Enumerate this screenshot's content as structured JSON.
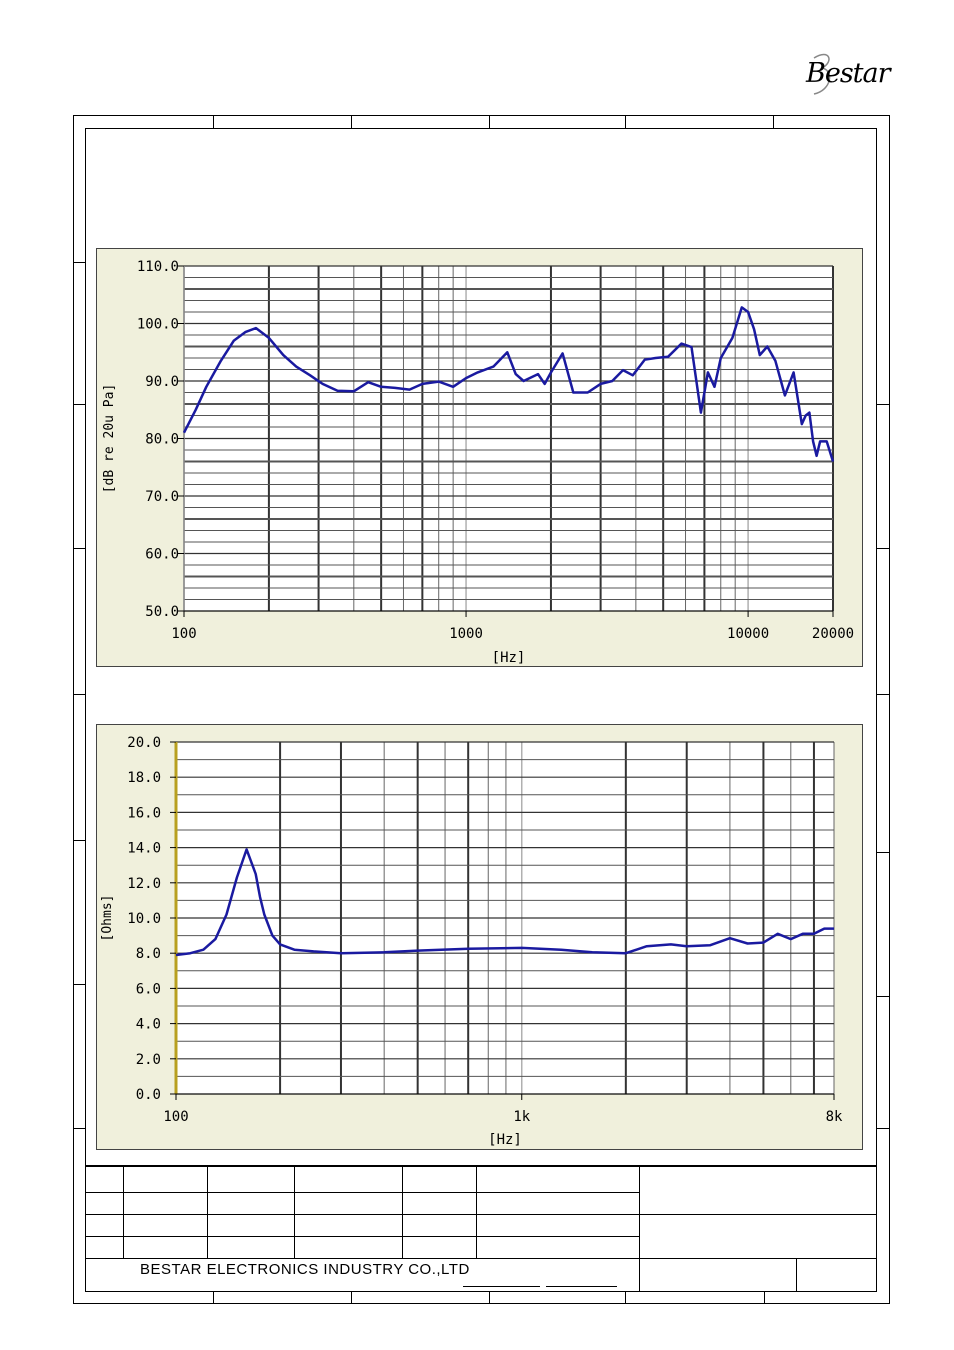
{
  "logo": {
    "text": "Bestar"
  },
  "footer": {
    "company": "BESTAR ELECTRONICS INDUSTRY CO.,LTD"
  },
  "chart_data": [
    {
      "type": "line",
      "xscale": "log",
      "xlim": [
        100,
        20000
      ],
      "ylim": [
        50,
        110
      ],
      "xlabel": "[Hz]",
      "ylabel": "[dB re 20u Pa]",
      "x_tick_labels": [
        "100",
        "1000",
        "10000",
        "20000"
      ],
      "y_tick_labels": [
        "110.0",
        "100.0",
        "90.0",
        "80.0",
        "70.0",
        "60.0",
        "50.0"
      ],
      "series": [
        {
          "color": "#1a1aa0",
          "x": [
            100,
            110,
            120,
            135,
            150,
            165,
            180,
            200,
            225,
            250,
            280,
            310,
            350,
            400,
            450,
            500,
            560,
            630,
            700,
            800,
            900,
            1000,
            1100,
            1250,
            1400,
            1500,
            1600,
            1800,
            1900,
            2000,
            2200,
            2400,
            2700,
            3000,
            3300,
            3600,
            3900,
            4300,
            4700,
            5200,
            5800,
            6300,
            6800,
            7200,
            7600,
            8000,
            8800,
            9500,
            10000,
            10500,
            11000,
            11700,
            12500,
            13500,
            14500,
            15500,
            16000,
            16500,
            17000,
            17500,
            18000,
            19000,
            20000
          ],
          "y": [
            81,
            85,
            89,
            93.5,
            97,
            98.5,
            99.2,
            97.5,
            94.5,
            92.5,
            91,
            89.5,
            88.3,
            88.2,
            89.8,
            89,
            88.8,
            88.5,
            89.5,
            89.9,
            89,
            90.5,
            91.5,
            92.5,
            95,
            91.2,
            90,
            91.2,
            89.5,
            91.5,
            94.8,
            88,
            88,
            89.5,
            90,
            91.9,
            91,
            93.7,
            94,
            94.2,
            96.5,
            95.9,
            84.5,
            91.5,
            89,
            94,
            97.5,
            102.8,
            102,
            99,
            94.5,
            96,
            93.5,
            87.5,
            91.5,
            82.5,
            84,
            84.5,
            79.5,
            77,
            79.5,
            79.5,
            76
          ]
        }
      ]
    },
    {
      "type": "line",
      "xscale": "log",
      "xlim": [
        100,
        8000
      ],
      "ylim": [
        0,
        20
      ],
      "xlabel": "[Hz]",
      "ylabel": "[Ohms]",
      "x_tick_labels": [
        "100",
        "1k",
        "8k"
      ],
      "y_tick_labels": [
        "20.0",
        "18.0",
        "16.0",
        "14.0",
        "12.0",
        "10.0",
        "8.0",
        "6.0",
        "4.0",
        "2.0",
        "0.0"
      ],
      "series": [
        {
          "color": "#1a1aa0",
          "x": [
            100,
            110,
            120,
            130,
            140,
            150,
            160,
            170,
            175,
            180,
            190,
            200,
            220,
            250,
            300,
            400,
            500,
            700,
            1000,
            1300,
            1600,
            2000,
            2300,
            2700,
            3000,
            3500,
            4000,
            4500,
            5000,
            5500,
            6000,
            6500,
            7000,
            7500,
            8000
          ],
          "y": [
            7.9,
            8.0,
            8.2,
            8.8,
            10.2,
            12.3,
            13.9,
            12.5,
            11.2,
            10.2,
            9.0,
            8.5,
            8.2,
            8.1,
            8.0,
            8.05,
            8.15,
            8.25,
            8.3,
            8.2,
            8.05,
            8.0,
            8.4,
            8.5,
            8.4,
            8.45,
            8.85,
            8.55,
            8.6,
            9.1,
            8.8,
            9.1,
            9.1,
            9.4,
            9.4
          ]
        }
      ]
    }
  ]
}
